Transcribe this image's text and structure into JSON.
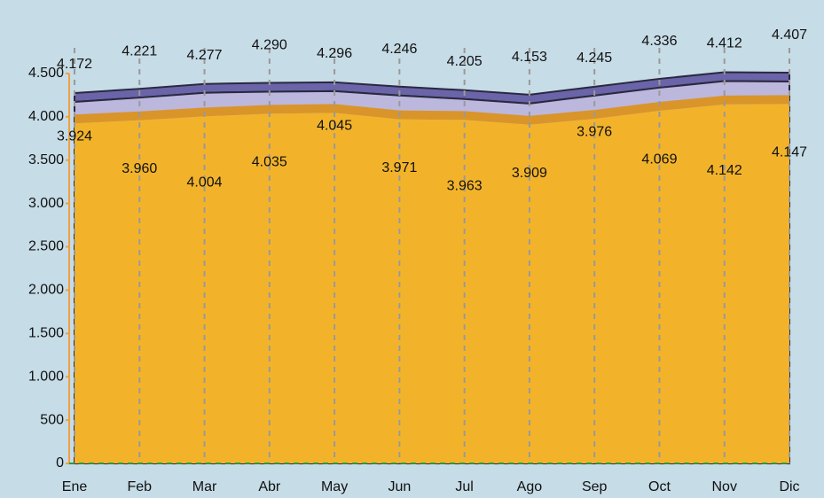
{
  "chart_data": {
    "type": "area",
    "categories": [
      "Ene",
      "Feb",
      "Mar",
      "Abr",
      "May",
      "Jun",
      "Jul",
      "Ago",
      "Sep",
      "Oct",
      "Nov",
      "Dic"
    ],
    "series": [
      {
        "color": "#f2b32b",
        "values": [
          3924,
          3960,
          4004,
          4035,
          4045,
          3971,
          3963,
          3909,
          3976,
          4069,
          4142,
          4147
        ],
        "value_labels": [
          "3.924",
          "3.960",
          "4.004",
          "4.035",
          "4.045",
          "3.971",
          "3.963",
          "3.909",
          "3.976",
          "4.069",
          "4.142",
          "4.147"
        ]
      },
      {
        "color": "#bcb7dd",
        "values": [
          4172,
          4221,
          4277,
          4290,
          4296,
          4246,
          4205,
          4153,
          4245,
          4336,
          4412,
          4407
        ],
        "value_labels": [
          "4.172",
          "4.221",
          "4.277",
          "4.290",
          "4.296",
          "4.246",
          "4.205",
          "4.153",
          "4.245",
          "4.336",
          "4.412",
          "4.407"
        ]
      }
    ],
    "ylim": [
      0,
      5000
    ],
    "yticks": [
      0,
      500,
      {
        "value": 1000,
        "label": "1.000"
      },
      {
        "value": 1500,
        "label": "1.500"
      },
      {
        "value": 2000,
        "label": "2.000"
      },
      {
        "value": 2500,
        "label": "2.500"
      },
      {
        "value": 3000,
        "label": "3.000"
      },
      {
        "value": 3500,
        "label": "3.500"
      },
      {
        "value": 4000,
        "label": "4.000"
      },
      {
        "value": 4500,
        "label": "4.500"
      }
    ],
    "grid": true
  }
}
